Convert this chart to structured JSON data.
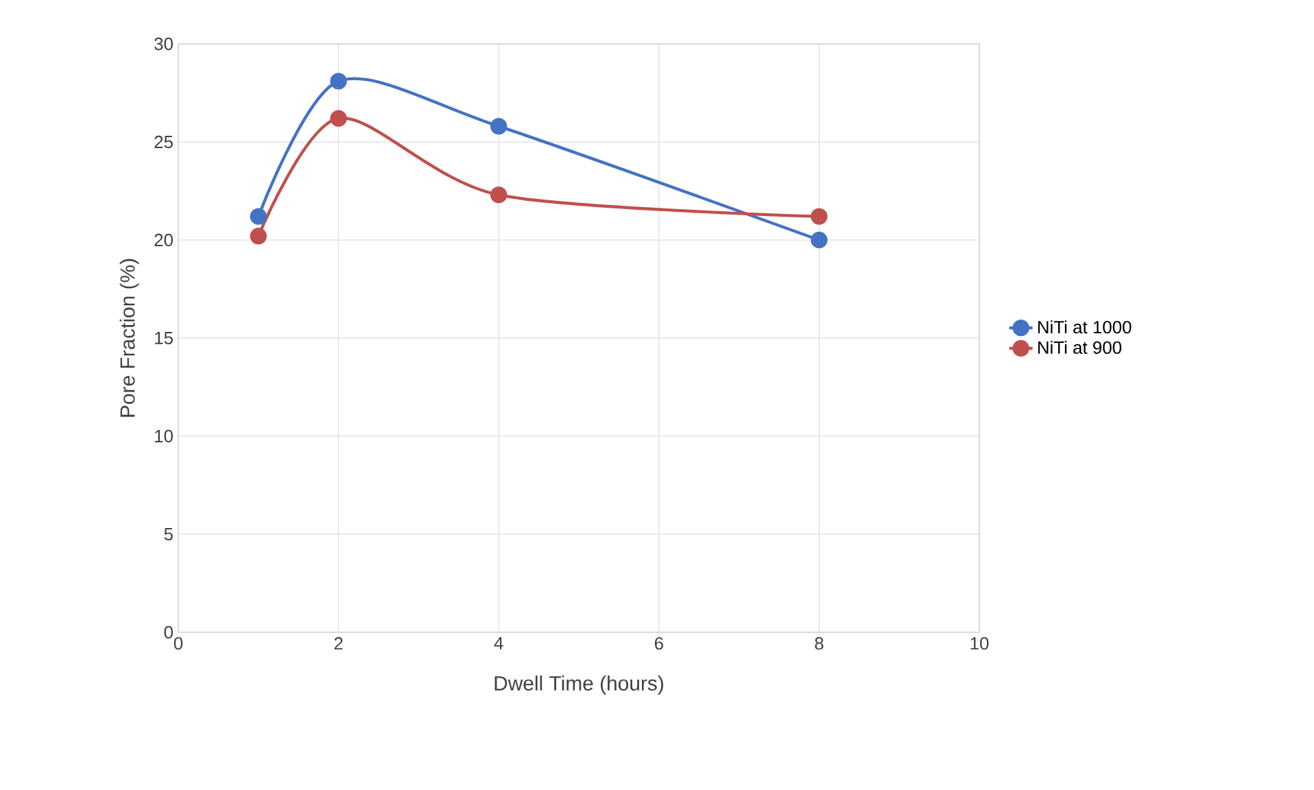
{
  "chart_data": {
    "type": "line",
    "xlabel": "Dwell Time (hours)",
    "ylabel": "Pore Fraction (%)",
    "xlim": [
      0,
      10
    ],
    "xticks": [
      0,
      2,
      4,
      6,
      8,
      10
    ],
    "ylim": [
      0,
      30
    ],
    "yticks": [
      0,
      5,
      10,
      15,
      20,
      25,
      30
    ],
    "grid": true,
    "legend": "right",
    "marker": "circle",
    "line_style": "solid",
    "series": [
      {
        "name": "NiTi at 1000",
        "color": "#4472c4",
        "x": [
          1,
          2,
          4,
          8
        ],
        "values": [
          21.2,
          28.1,
          25.8,
          20.0
        ]
      },
      {
        "name": "NiTi at 900",
        "color": "#c0504d",
        "x": [
          1,
          2,
          4,
          8
        ],
        "values": [
          20.2,
          26.2,
          22.3,
          21.2
        ]
      }
    ]
  }
}
